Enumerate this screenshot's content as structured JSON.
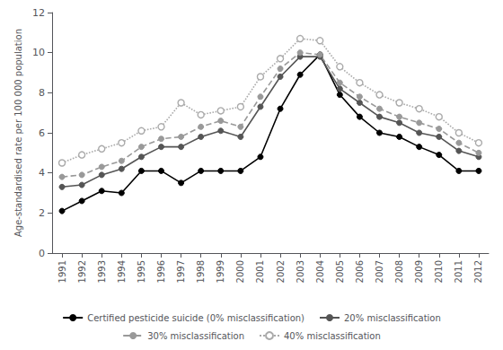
{
  "chart_data": {
    "type": "line",
    "y_label": "Age-standardised rate per 100 000 population",
    "x": [
      1991,
      1992,
      1993,
      1994,
      1995,
      1996,
      1997,
      1998,
      1999,
      2000,
      2001,
      2002,
      2003,
      2004,
      2005,
      2006,
      2007,
      2008,
      2009,
      2010,
      2011,
      2012
    ],
    "series": [
      {
        "name": "Certified pesticide suicide (0% misclassification)",
        "color": "#000000",
        "line_style": "solid",
        "marker": "circle",
        "values": [
          2.1,
          2.6,
          3.1,
          3.0,
          4.1,
          4.1,
          3.5,
          4.1,
          4.1,
          4.1,
          4.8,
          7.2,
          8.9,
          9.9,
          7.9,
          6.8,
          6.0,
          5.8,
          5.3,
          4.9,
          4.1,
          4.1
        ]
      },
      {
        "name": "20% misclassification",
        "color": "#555555",
        "line_style": "solid",
        "marker": "circle",
        "values": [
          3.3,
          3.4,
          3.9,
          4.2,
          4.8,
          5.3,
          5.3,
          5.8,
          6.1,
          5.8,
          7.3,
          8.8,
          9.8,
          9.8,
          8.2,
          7.5,
          6.8,
          6.5,
          6.0,
          5.8,
          5.1,
          4.8
        ]
      },
      {
        "name": "30% misclassification",
        "color": "#999999",
        "line_style": "dashed",
        "marker": "circle",
        "values": [
          3.8,
          3.9,
          4.3,
          4.6,
          5.3,
          5.7,
          5.8,
          6.3,
          6.6,
          6.3,
          7.8,
          9.2,
          10.0,
          9.9,
          8.5,
          7.8,
          7.2,
          6.8,
          6.5,
          6.2,
          5.5,
          5.0
        ]
      },
      {
        "name": "40% misclassification",
        "color": "#aaaaaa",
        "line_style": "dotted",
        "marker": "open_circle",
        "values": [
          4.5,
          4.9,
          5.2,
          5.5,
          6.1,
          6.3,
          7.5,
          6.9,
          7.1,
          7.3,
          8.8,
          9.7,
          10.7,
          10.6,
          9.3,
          8.5,
          7.9,
          7.5,
          7.2,
          6.8,
          6.0,
          5.5
        ]
      }
    ],
    "xlim": [
      1990.5,
      2012.5
    ],
    "xticks": [
      1991,
      1992,
      1993,
      1994,
      1995,
      1996,
      1997,
      1998,
      1999,
      2000,
      2001,
      2002,
      2003,
      2004,
      2005,
      2006,
      2007,
      2008,
      2009,
      2010,
      2011,
      2012
    ],
    "ylim": [
      0,
      12
    ],
    "yticks": [
      0,
      2,
      4,
      6,
      8,
      10,
      12
    ],
    "grid": false,
    "legend": "bottom"
  }
}
